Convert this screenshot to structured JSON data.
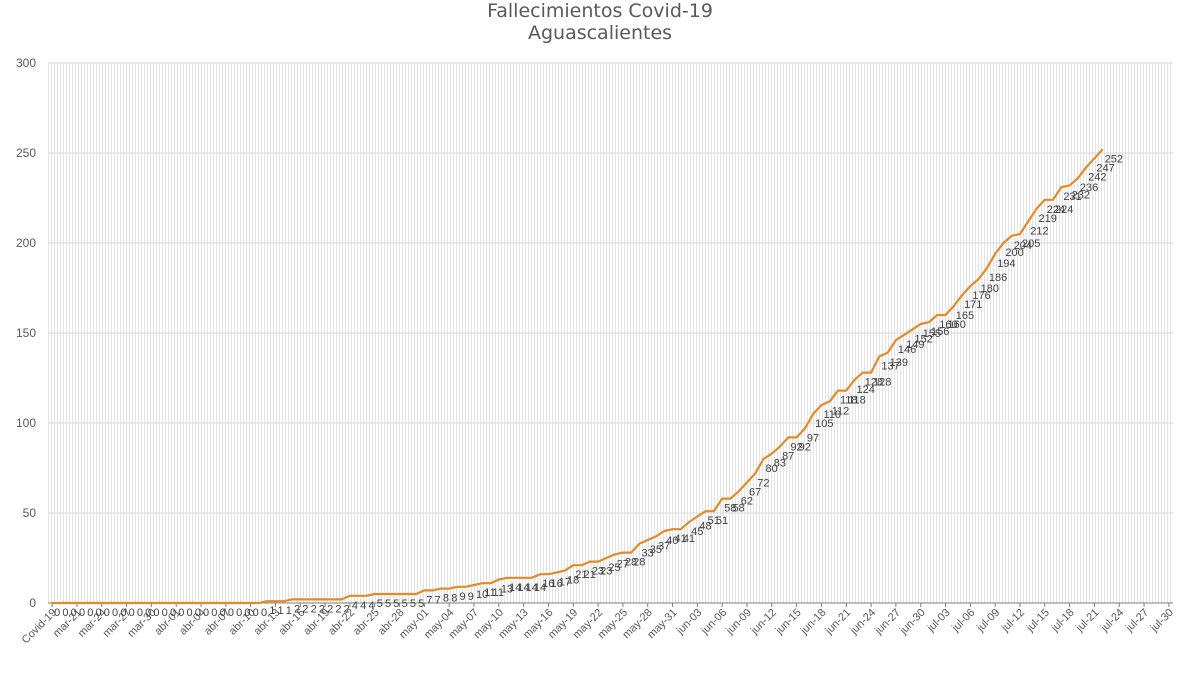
{
  "chart_data": {
    "type": "line",
    "title": "Fallecimientos Covid-19",
    "subtitle": "Aguascalientes",
    "colors": {
      "line": "#e08a2c",
      "grid": "#d9d9d9",
      "axis": "#7f7f7f",
      "text": "#595959"
    },
    "ylim": [
      0,
      300
    ],
    "yticks": [
      0,
      50,
      100,
      150,
      200,
      250,
      300
    ],
    "grid": true,
    "x_tick_labels": [
      "Covid-19",
      "mar-21",
      "mar-24",
      "mar-27",
      "mar-30",
      "abr-01",
      "abr-04",
      "abr-07",
      "abr-10",
      "abr-13",
      "abr-16",
      "abr-19",
      "abr-22",
      "abr-25",
      "abr-28",
      "may-01",
      "may-04",
      "may-07",
      "may-10",
      "may-13",
      "may-16",
      "may-19",
      "may-22",
      "may-25",
      "may-28",
      "may-31",
      "jun-03",
      "jun-06",
      "jun-09",
      "jun-12",
      "jun-15",
      "jun-18",
      "jun-21",
      "jun-24",
      "jun-27",
      "jun-30",
      "jul-03",
      "jul-06",
      "jul-09",
      "jul-12",
      "jul-15",
      "jul-18",
      "jul-21",
      "jul-24",
      "jul-27",
      "jul-30"
    ],
    "series": [
      {
        "values": [
          0,
          0,
          0,
          0,
          0,
          0,
          0,
          0,
          0,
          0,
          0,
          0,
          0,
          0,
          0,
          0,
          0,
          0,
          0,
          0,
          0,
          0,
          0,
          0,
          0,
          0,
          1,
          1,
          1,
          2,
          2,
          2,
          2,
          2,
          2,
          2,
          4,
          4,
          4,
          5,
          5,
          5,
          5,
          5,
          5,
          7,
          7,
          8,
          8,
          9,
          9,
          10,
          11,
          11,
          13,
          14,
          14,
          14,
          14,
          16,
          16,
          17,
          18,
          21,
          21,
          23,
          23,
          25,
          27,
          28,
          28,
          33,
          35,
          37,
          40,
          41,
          41,
          45,
          48,
          51,
          51,
          58,
          58,
          62,
          67,
          72,
          80,
          83,
          87,
          92,
          92,
          97,
          105,
          110,
          112,
          118,
          118,
          124,
          128,
          128,
          137,
          139,
          146,
          149,
          152,
          155,
          156,
          160,
          160,
          165,
          171,
          176,
          180,
          186,
          194,
          200,
          204,
          205,
          212,
          219,
          224,
          224,
          231,
          232,
          236,
          242,
          247,
          252
        ]
      }
    ]
  }
}
